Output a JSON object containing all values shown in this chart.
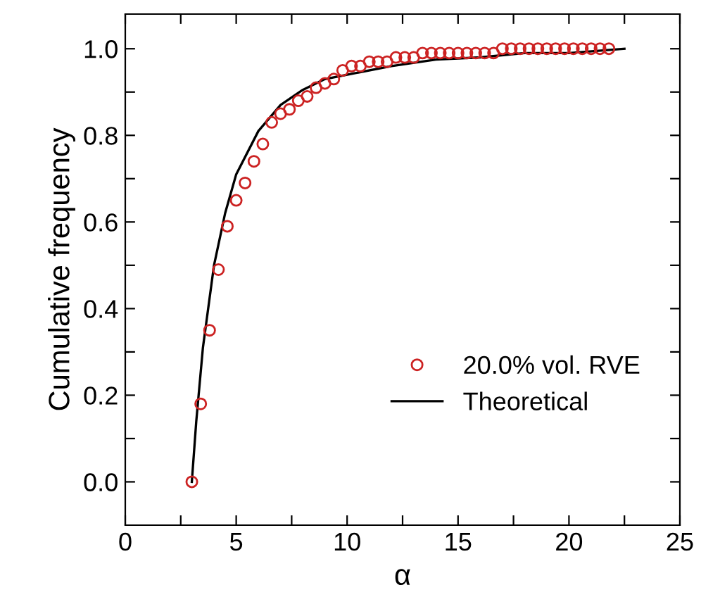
{
  "chart_data": {
    "type": "scatter",
    "xlabel": "α",
    "ylabel": "Cumulative frequency",
    "xlim": [
      0,
      25
    ],
    "ylim": [
      -0.1,
      1.08
    ],
    "xticks": [
      0,
      {
        "value": 2.5,
        "label": null
      },
      5,
      {
        "value": 7.5,
        "label": null
      },
      10,
      {
        "value": 12.5,
        "label": null
      },
      15,
      {
        "value": 17.5,
        "label": null
      },
      20,
      {
        "value": 22.5,
        "label": null
      },
      25
    ],
    "yticks": [
      "0.0",
      {
        "value": 0.1,
        "label": null
      },
      0.2,
      {
        "value": 0.3,
        "label": null
      },
      0.4,
      {
        "value": 0.5,
        "label": null
      },
      0.6,
      {
        "value": 0.7,
        "label": null
      },
      0.8,
      {
        "value": 0.9,
        "label": null
      },
      {
        "value": 1.0,
        "label": "1.0"
      }
    ],
    "grid": false,
    "legend": "bottom right",
    "series": [
      {
        "name": "20.0% vol. RVE",
        "marker": "circle",
        "color": "#cc2222",
        "x": [
          3.0,
          3.4,
          3.8,
          4.2,
          4.6,
          5.0,
          5.4,
          5.8,
          6.2,
          6.6,
          7.0,
          7.4,
          7.8,
          8.2,
          8.6,
          9.0,
          9.4,
          9.8,
          10.2,
          10.6,
          11.0,
          11.4,
          11.8,
          12.2,
          12.6,
          13.0,
          13.4,
          13.8,
          14.2,
          14.6,
          15.0,
          15.4,
          15.8,
          16.2,
          16.6,
          17.0,
          17.4,
          17.8,
          18.2,
          18.6,
          19.0,
          19.4,
          19.8,
          20.2,
          20.6,
          21.0,
          21.4,
          21.8
        ],
        "values": [
          0.0,
          0.18,
          0.35,
          0.49,
          0.59,
          0.65,
          0.69,
          0.74,
          0.78,
          0.83,
          0.85,
          0.86,
          0.88,
          0.89,
          0.91,
          0.92,
          0.93,
          0.95,
          0.96,
          0.96,
          0.97,
          0.97,
          0.97,
          0.98,
          0.98,
          0.98,
          0.99,
          0.99,
          0.99,
          0.99,
          0.99,
          0.99,
          0.99,
          0.99,
          0.99,
          1.0,
          1.0,
          1.0,
          1.0,
          1.0,
          1.0,
          1.0,
          1.0,
          1.0,
          1.0,
          1.0,
          1.0,
          1.0
        ]
      },
      {
        "name": "Theoretical",
        "type": "line",
        "line_style": "solid",
        "color": "#000000",
        "x": [
          3.0,
          3.2,
          3.5,
          4.0,
          4.5,
          5.0,
          6.0,
          7.0,
          8.0,
          9.0,
          10.0,
          12.0,
          14.0,
          16.0,
          18.0,
          20.0,
          22.5
        ],
        "values": [
          0.0,
          0.14,
          0.31,
          0.5,
          0.62,
          0.71,
          0.81,
          0.87,
          0.905,
          0.93,
          0.94,
          0.96,
          0.975,
          0.98,
          0.99,
          0.99,
          1.0
        ]
      }
    ]
  }
}
